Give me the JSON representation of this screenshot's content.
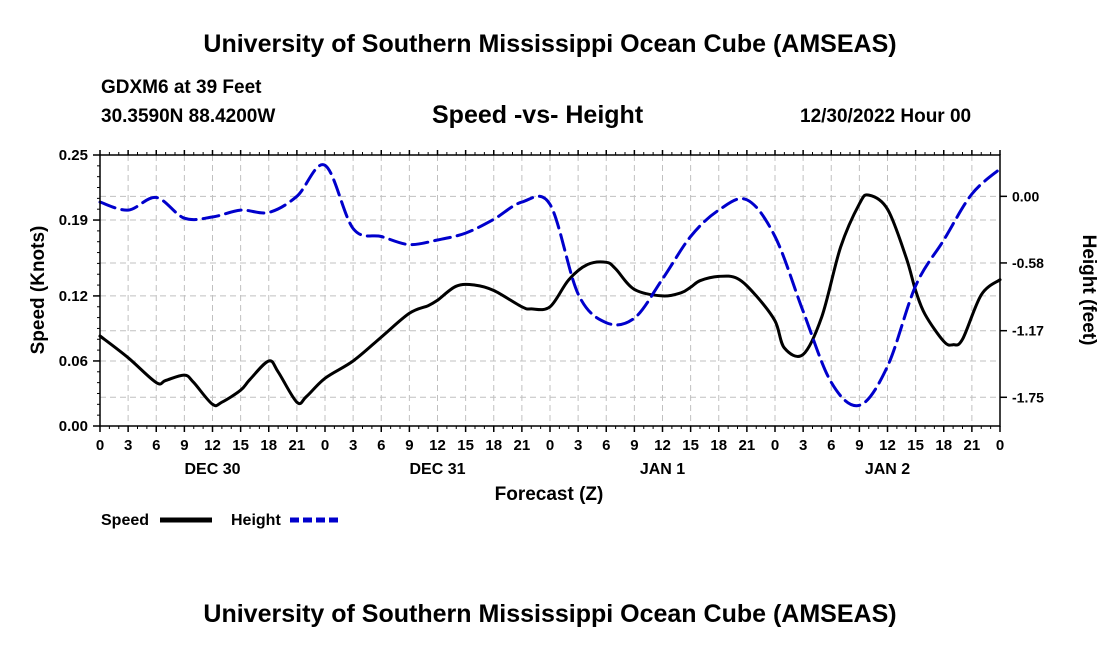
{
  "header": {
    "title": "University of Southern Mississippi Ocean Cube (AMSEAS)",
    "footer_title": "University of Southern Mississippi Ocean Cube (AMSEAS)",
    "station": "GDXM6 at 39 Feet",
    "coords": "30.3590N  88.4200W",
    "subtitle": "Speed -vs- Height",
    "timestamp": "12/30/2022 Hour 00"
  },
  "chart_data": {
    "type": "line",
    "title": "Speed -vs- Height",
    "xlabel": "Forecast (Z)",
    "ylabel": "Speed (Knots)",
    "y2label": "Height (feet)",
    "x_range_hours": [
      0,
      96
    ],
    "x_tick_hours": [
      0,
      3,
      6,
      9,
      12,
      15,
      18,
      21,
      24,
      27,
      30,
      33,
      36,
      39,
      42,
      45,
      48,
      51,
      54,
      57,
      60,
      63,
      66,
      69,
      72,
      75,
      78,
      81,
      84,
      87,
      90,
      93,
      96
    ],
    "x_tick_labels": [
      "0",
      "3",
      "6",
      "9",
      "12",
      "15",
      "18",
      "21",
      "0",
      "3",
      "6",
      "9",
      "12",
      "15",
      "18",
      "21",
      "0",
      "3",
      "6",
      "9",
      "12",
      "15",
      "18",
      "21",
      "0",
      "3",
      "6",
      "9",
      "12",
      "15",
      "18",
      "21",
      "0"
    ],
    "date_labels": [
      {
        "label": "DEC 30",
        "hour": 12
      },
      {
        "label": "DEC 31",
        "hour": 36
      },
      {
        "label": "JAN 1",
        "hour": 60
      },
      {
        "label": "JAN 2",
        "hour": 84
      }
    ],
    "ylim": [
      0,
      0.25
    ],
    "y_ticks": [
      0,
      0.06,
      0.12,
      0.19,
      0.25
    ],
    "y_tick_labels": [
      "0.00",
      "0.06",
      "0.12",
      "0.19",
      "0.25"
    ],
    "y2lim": [
      -2.0,
      0.36
    ],
    "y2_ticks": [
      0.0,
      -0.58,
      -1.17,
      -1.75
    ],
    "y2_tick_labels": [
      "0.00",
      "-0.58",
      "-1.17",
      "-1.75"
    ],
    "grid": true,
    "legend": "bottom-left",
    "series": [
      {
        "name": "Speed",
        "axis": "left",
        "color": "#000000",
        "style": "solid",
        "x": [
          0,
          3,
          6,
          7,
          9,
          10,
          12,
          13,
          15,
          16,
          18,
          19,
          21,
          22,
          24,
          27,
          30,
          33,
          35,
          36,
          38,
          40,
          42,
          45,
          46,
          48,
          50,
          52,
          54,
          55,
          57,
          60,
          62,
          63,
          64,
          66,
          68,
          70,
          72,
          73,
          75,
          77,
          79,
          81,
          82,
          84,
          86,
          87,
          88,
          90,
          91,
          92,
          94,
          96
        ],
        "values": [
          0.083,
          0.063,
          0.04,
          0.042,
          0.047,
          0.04,
          0.02,
          0.022,
          0.033,
          0.043,
          0.06,
          0.05,
          0.022,
          0.027,
          0.044,
          0.06,
          0.082,
          0.104,
          0.111,
          0.116,
          0.129,
          0.13,
          0.125,
          0.11,
          0.108,
          0.11,
          0.135,
          0.149,
          0.151,
          0.145,
          0.126,
          0.12,
          0.123,
          0.128,
          0.134,
          0.138,
          0.136,
          0.12,
          0.097,
          0.072,
          0.066,
          0.101,
          0.165,
          0.205,
          0.213,
          0.2,
          0.155,
          0.125,
          0.103,
          0.078,
          0.075,
          0.08,
          0.121,
          0.135
        ]
      },
      {
        "name": "Height",
        "axis": "right",
        "color": "#0000cc",
        "style": "dashed",
        "x": [
          0,
          3,
          6,
          9,
          12,
          15,
          18,
          21,
          24,
          27,
          30,
          33,
          36,
          39,
          42,
          45,
          48,
          51,
          54,
          57,
          60,
          63,
          66,
          69,
          72,
          75,
          78,
          81,
          84,
          87,
          90,
          93,
          96
        ],
        "values": [
          -0.05,
          -0.12,
          -0.01,
          -0.19,
          -0.18,
          -0.12,
          -0.14,
          0.0,
          0.27,
          -0.28,
          -0.35,
          -0.42,
          -0.38,
          -0.32,
          -0.2,
          -0.05,
          -0.07,
          -0.85,
          -1.1,
          -1.06,
          -0.72,
          -0.35,
          -0.12,
          -0.03,
          -0.35,
          -1.0,
          -1.62,
          -1.82,
          -1.48,
          -0.78,
          -0.38,
          0.02,
          0.24
        ]
      }
    ]
  },
  "legend": {
    "speed_label": "Speed",
    "height_label": "Height"
  },
  "colors": {
    "speed": "#000000",
    "height": "#0000cc",
    "grid": "#c0c0c0"
  }
}
